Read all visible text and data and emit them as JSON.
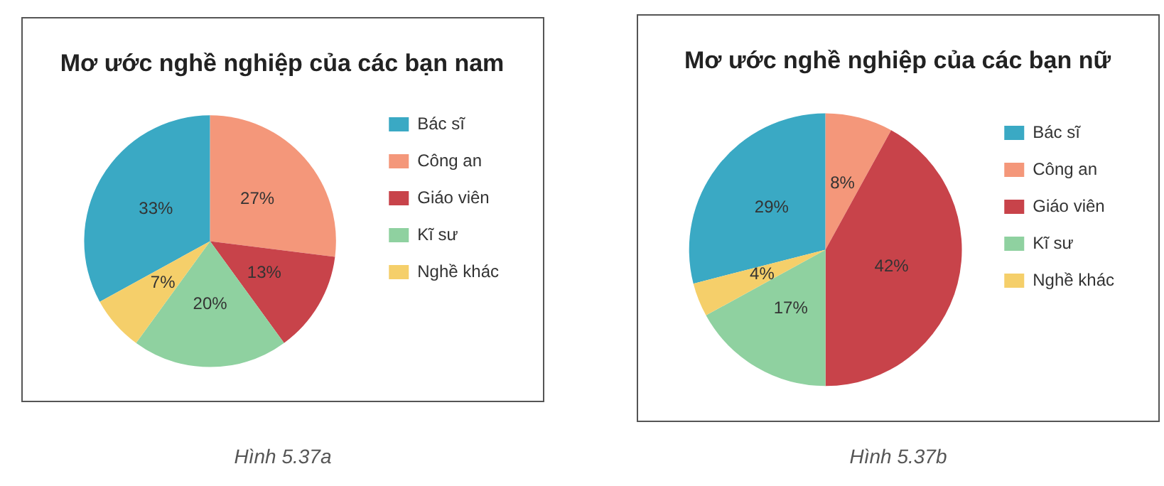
{
  "chart_data": [
    {
      "type": "pie",
      "title": "Mơ ước nghề nghiệp của các bạn nam",
      "categories": [
        "Bác sĩ",
        "Công an",
        "Giáo viên",
        "Kĩ sư",
        "Nghề khác"
      ],
      "values": [
        33,
        27,
        13,
        20,
        7
      ],
      "value_labels": [
        "33%",
        "27%",
        "13%",
        "20%",
        "7%"
      ],
      "colors": [
        "#3aa9c4",
        "#f4977a",
        "#c8434a",
        "#8fd1a0",
        "#f5cf6a"
      ],
      "legend": "right",
      "annotations": [
        "Hình 5.37a"
      ]
    },
    {
      "type": "pie",
      "title": "Mơ ước nghề nghiệp của các bạn nữ",
      "categories": [
        "Bác sĩ",
        "Công an",
        "Giáo viên",
        "Kĩ sư",
        "Nghề khác"
      ],
      "values": [
        29,
        8,
        42,
        17,
        4
      ],
      "value_labels": [
        "29%",
        "8%",
        "42%",
        "17%",
        "4%"
      ],
      "colors": [
        "#3aa9c4",
        "#f4977a",
        "#c8434a",
        "#8fd1a0",
        "#f5cf6a"
      ],
      "legend": "right",
      "annotations": [
        "Hình 5.37b"
      ]
    }
  ]
}
